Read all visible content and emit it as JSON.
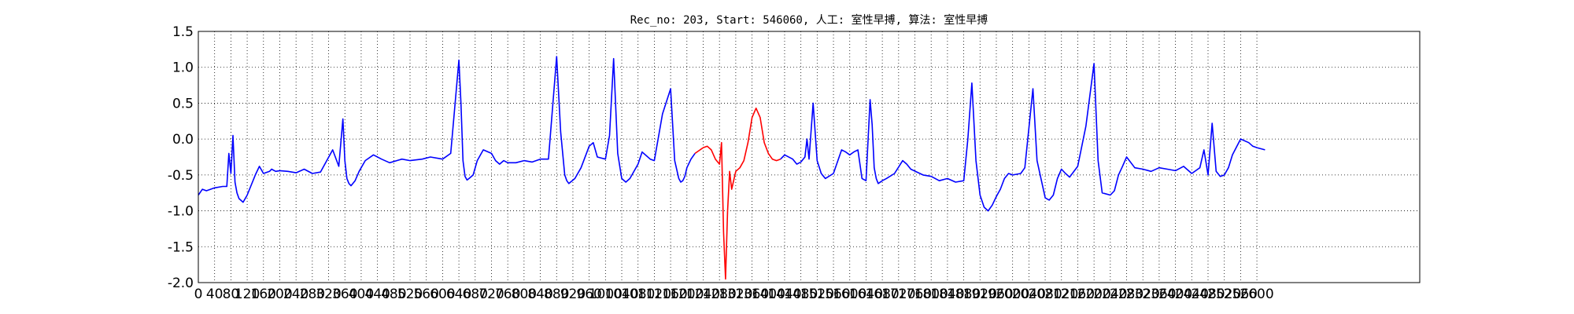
{
  "chart_data": {
    "type": "line",
    "title": "Rec_no: 203, Start: 546060, 人工: 室性早搏, 算法: 室性早搏",
    "xlabel": "",
    "ylabel": "",
    "xlim": [
      0,
      3000
    ],
    "ylim": [
      -2.0,
      1.5
    ],
    "grid": true,
    "yticks": [
      "1.5",
      "1.0",
      "0.5",
      "0.0",
      "-0.5",
      "-1.0",
      "-1.5",
      "-2.0"
    ],
    "ytick_values": [
      1.5,
      1.0,
      0.5,
      0.0,
      -0.5,
      -1.0,
      -1.5,
      -2.0
    ],
    "xticks": [
      "0",
      "40",
      "80",
      "120",
      "160",
      "200",
      "240",
      "280",
      "320",
      "360",
      "400",
      "440",
      "480",
      "520",
      "560",
      "600",
      "640",
      "680",
      "720",
      "760",
      "800",
      "840",
      "880",
      "920",
      "960",
      "1000",
      "1040",
      "1080",
      "1120",
      "1160",
      "1200",
      "1240",
      "1280",
      "1320",
      "1360",
      "1400",
      "1440",
      "1480",
      "1520",
      "1560",
      "1600",
      "1640",
      "1680",
      "1720",
      "1760",
      "1800",
      "1840",
      "1880",
      "1920",
      "1960",
      "2000",
      "2040",
      "2080",
      "2120",
      "2160",
      "2200",
      "2240",
      "2280",
      "2320",
      "2360",
      "2400",
      "2440",
      "2480",
      "2520",
      "2560",
      "2600"
    ],
    "series": [
      {
        "color": "#0000ff",
        "x": [
          0,
          10,
          20,
          40,
          60,
          70,
          75,
          80,
          85,
          90,
          95,
          100,
          110,
          120,
          140,
          150,
          160,
          175,
          180,
          190,
          200,
          220,
          240,
          260,
          280,
          300,
          330,
          345,
          355,
          360,
          365,
          370,
          375,
          385,
          395,
          410,
          430,
          450,
          470,
          500,
          520,
          550,
          570,
          600,
          620,
          640,
          645,
          650,
          655,
          660,
          665,
          675,
          685,
          700,
          720,
          730,
          740,
          750,
          760,
          780,
          800,
          820,
          840,
          860,
          880,
          890,
          900,
          905,
          910,
          925,
          940,
          960,
          970,
          980,
          1000,
          1010,
          1020,
          1030,
          1040,
          1050,
          1060,
          1080,
          1090,
          1110,
          1120,
          1140,
          1160,
          1170,
          1180,
          1185,
          1190,
          1195,
          1200,
          1210,
          1220
        ],
        "y": [
          -0.78,
          -0.7,
          -0.72,
          -0.68,
          -0.66,
          -0.66,
          -0.2,
          -0.48,
          0.05,
          -0.6,
          -0.75,
          -0.83,
          -0.88,
          -0.78,
          -0.5,
          -0.38,
          -0.48,
          -0.45,
          -0.42,
          -0.45,
          -0.44,
          -0.45,
          -0.47,
          -0.42,
          -0.48,
          -0.46,
          -0.15,
          -0.38,
          0.28,
          -0.3,
          -0.55,
          -0.62,
          -0.65,
          -0.58,
          -0.45,
          -0.3,
          -0.22,
          -0.28,
          -0.33,
          -0.28,
          -0.3,
          -0.28,
          -0.25,
          -0.28,
          -0.2,
          1.1,
          0.5,
          -0.3,
          -0.52,
          -0.57,
          -0.55,
          -0.5,
          -0.3,
          -0.15,
          -0.2,
          -0.3,
          -0.35,
          -0.3,
          -0.33,
          -0.33,
          -0.3,
          -0.32,
          -0.28,
          -0.28,
          1.15,
          0.1,
          -0.5,
          -0.58,
          -0.62,
          -0.55,
          -0.4,
          -0.1,
          -0.05,
          -0.25,
          -0.28,
          0.05,
          1.12,
          -0.2,
          -0.55,
          -0.6,
          -0.55,
          -0.35,
          -0.18,
          -0.28,
          -0.3,
          0.35,
          0.7,
          -0.3,
          -0.55,
          -0.6,
          -0.58,
          -0.52,
          -0.4,
          -0.28,
          -0.2
        ]
      },
      {
        "color": "#ff0000",
        "x": [
          1220,
          1240,
          1250,
          1260,
          1270,
          1280,
          1285,
          1290,
          1295,
          1300,
          1305,
          1310,
          1320,
          1330,
          1340,
          1350,
          1360,
          1370,
          1380,
          1390,
          1400,
          1410,
          1420,
          1430
        ],
        "y": [
          -0.2,
          -0.12,
          -0.1,
          -0.15,
          -0.28,
          -0.35,
          -0.05,
          -1.3,
          -1.95,
          -1.0,
          -0.45,
          -0.7,
          -0.45,
          -0.4,
          -0.3,
          -0.05,
          0.3,
          0.43,
          0.3,
          -0.05,
          -0.2,
          -0.28,
          -0.3,
          -0.28
        ]
      },
      {
        "color": "#0000ff",
        "x": [
          1430,
          1440,
          1460,
          1470,
          1480,
          1490,
          1495,
          1500,
          1510,
          1520,
          1530,
          1540,
          1560,
          1580,
          1590,
          1600,
          1610,
          1620,
          1630,
          1640,
          1650,
          1655,
          1660,
          1665,
          1670,
          1680,
          1690,
          1710,
          1730,
          1740,
          1750,
          1780,
          1800,
          1820,
          1840,
          1860,
          1880,
          1890,
          1900,
          1910,
          1920,
          1930,
          1940,
          1950,
          1960,
          1970,
          1980,
          1990,
          2000,
          2020,
          2030,
          2050,
          2060,
          2080,
          2090,
          2100,
          2110,
          2120,
          2130,
          2140,
          2160,
          2180,
          2200,
          2210,
          2220,
          2240,
          2250,
          2260,
          2270,
          2280,
          2300,
          2320,
          2340,
          2360,
          2380,
          2400,
          2420,
          2440,
          2460,
          2470,
          2480,
          2490,
          2500,
          2510,
          2520,
          2530,
          2540,
          2560,
          2580,
          2590,
          2600,
          2620
        ],
        "y": [
          -0.28,
          -0.22,
          -0.28,
          -0.35,
          -0.32,
          -0.25,
          0.0,
          -0.28,
          0.5,
          -0.3,
          -0.48,
          -0.55,
          -0.48,
          -0.15,
          -0.18,
          -0.22,
          -0.18,
          -0.15,
          -0.55,
          -0.58,
          0.55,
          0.2,
          -0.4,
          -0.55,
          -0.62,
          -0.58,
          -0.55,
          -0.48,
          -0.3,
          -0.35,
          -0.42,
          -0.5,
          -0.52,
          -0.58,
          -0.55,
          -0.6,
          -0.58,
          0.0,
          0.78,
          -0.3,
          -0.78,
          -0.95,
          -1.0,
          -0.92,
          -0.8,
          -0.7,
          -0.55,
          -0.48,
          -0.5,
          -0.48,
          -0.4,
          0.7,
          -0.3,
          -0.82,
          -0.85,
          -0.78,
          -0.55,
          -0.42,
          -0.48,
          -0.53,
          -0.38,
          0.18,
          1.05,
          -0.3,
          -0.75,
          -0.78,
          -0.72,
          -0.5,
          -0.38,
          -0.25,
          -0.4,
          -0.42,
          -0.45,
          -0.4,
          -0.42,
          -0.44,
          -0.38,
          -0.48,
          -0.4,
          -0.15,
          -0.5,
          0.22,
          -0.45,
          -0.52,
          -0.5,
          -0.4,
          -0.22,
          0.0,
          -0.05,
          -0.1,
          -0.12,
          -0.15
        ]
      }
    ]
  },
  "colors": {
    "frame": "#000000",
    "grid": "#000000",
    "background": "#ffffff"
  }
}
